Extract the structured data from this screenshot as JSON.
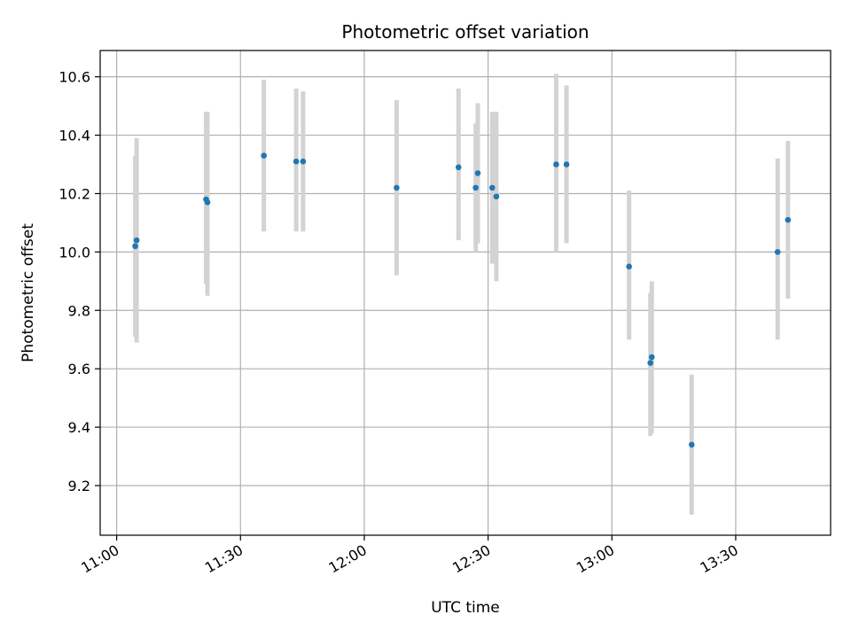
{
  "chart_data": {
    "type": "scatter",
    "title": "Photometric offset variation",
    "xlabel": "UTC time",
    "ylabel": "Photometric offset",
    "grid": true,
    "x_axis": {
      "type": "time",
      "range": [
        "10:56",
        "13:53"
      ],
      "ticks": [
        "11:00",
        "11:30",
        "12:00",
        "12:30",
        "13:00",
        "13:30"
      ]
    },
    "y_axis": {
      "range": [
        9.03,
        10.69
      ],
      "ticks": [
        9.2,
        9.4,
        9.6,
        9.8,
        10.0,
        10.2,
        10.4,
        10.6
      ],
      "tick_labels": [
        "9.2",
        "9.4",
        "9.6",
        "9.8",
        "10.0",
        "10.2",
        "10.4",
        "10.6"
      ]
    },
    "colors": {
      "point": "#1f77b4",
      "error_bar": "#d3d3d3",
      "grid": "#b0b0b0"
    },
    "points": [
      {
        "time": "11:04:30",
        "y": 10.02,
        "y_low": 9.71,
        "y_high": 10.33
      },
      {
        "time": "11:04:50",
        "y": 10.04,
        "y_low": 9.69,
        "y_high": 10.39
      },
      {
        "time": "11:21:40",
        "y": 10.18,
        "y_low": 9.89,
        "y_high": 10.48
      },
      {
        "time": "11:22:00",
        "y": 10.17,
        "y_low": 9.85,
        "y_high": 10.48
      },
      {
        "time": "11:35:40",
        "y": 10.33,
        "y_low": 10.07,
        "y_high": 10.59
      },
      {
        "time": "11:43:30",
        "y": 10.31,
        "y_low": 10.07,
        "y_high": 10.56
      },
      {
        "time": "11:45:10",
        "y": 10.31,
        "y_low": 10.07,
        "y_high": 10.55
      },
      {
        "time": "12:07:50",
        "y": 10.22,
        "y_low": 9.92,
        "y_high": 10.52
      },
      {
        "time": "12:22:50",
        "y": 10.29,
        "y_low": 10.04,
        "y_high": 10.56
      },
      {
        "time": "12:27:00",
        "y": 10.22,
        "y_low": 10.0,
        "y_high": 10.44
      },
      {
        "time": "12:27:30",
        "y": 10.27,
        "y_low": 10.03,
        "y_high": 10.51
      },
      {
        "time": "12:31:00",
        "y": 10.22,
        "y_low": 9.96,
        "y_high": 10.48
      },
      {
        "time": "12:32:00",
        "y": 10.19,
        "y_low": 9.9,
        "y_high": 10.48
      },
      {
        "time": "12:46:30",
        "y": 10.3,
        "y_low": 10.0,
        "y_high": 10.61
      },
      {
        "time": "12:49:00",
        "y": 10.3,
        "y_low": 10.03,
        "y_high": 10.57
      },
      {
        "time": "13:04:10",
        "y": 9.95,
        "y_low": 9.7,
        "y_high": 10.21
      },
      {
        "time": "13:09:20",
        "y": 9.62,
        "y_low": 9.37,
        "y_high": 9.86
      },
      {
        "time": "13:09:40",
        "y": 9.64,
        "y_low": 9.38,
        "y_high": 9.9
      },
      {
        "time": "13:19:20",
        "y": 9.34,
        "y_low": 9.1,
        "y_high": 9.58
      },
      {
        "time": "13:40:10",
        "y": 10.0,
        "y_low": 9.7,
        "y_high": 10.32
      },
      {
        "time": "13:42:40",
        "y": 10.11,
        "y_low": 9.84,
        "y_high": 10.38
      }
    ]
  }
}
